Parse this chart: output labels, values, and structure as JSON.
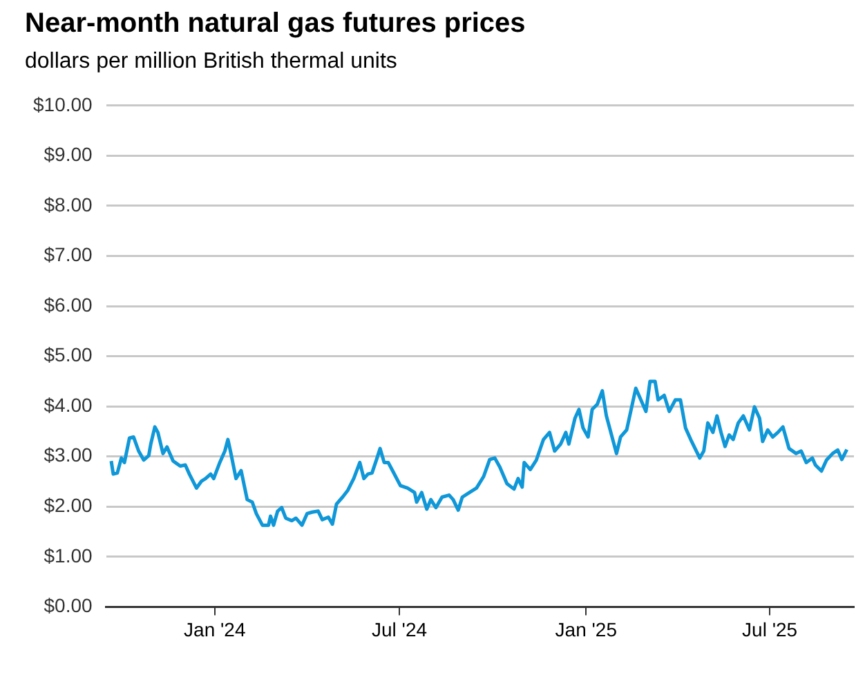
{
  "chart_data": {
    "type": "line",
    "title": "Near-month natural gas futures prices",
    "subtitle": "dollars per million British thermal units",
    "x": [
      "2023-09-21",
      "2023-09-23",
      "2023-09-27",
      "2023-10-01",
      "2023-10-04",
      "2023-10-09",
      "2023-10-13",
      "2023-10-18",
      "2023-10-23",
      "2023-10-28",
      "2023-10-30",
      "2023-11-03",
      "2023-11-06",
      "2023-11-11",
      "2023-11-15",
      "2023-11-21",
      "2023-11-28",
      "2023-12-03",
      "2023-12-07",
      "2023-12-14",
      "2023-12-19",
      "2023-12-23",
      "2023-12-28",
      "2023-12-31",
      "2024-01-06",
      "2024-01-11",
      "2024-01-14",
      "2024-01-17",
      "2024-01-22",
      "2024-01-27",
      "2024-02-02",
      "2024-02-07",
      "2024-02-11",
      "2024-02-17",
      "2024-02-23",
      "2024-02-25",
      "2024-02-28",
      "2024-03-03",
      "2024-03-07",
      "2024-03-11",
      "2024-03-17",
      "2024-03-21",
      "2024-03-27",
      "2024-04-01",
      "2024-04-06",
      "2024-04-12",
      "2024-04-16",
      "2024-04-22",
      "2024-04-26",
      "2024-04-30",
      "2024-05-06",
      "2024-05-11",
      "2024-05-17",
      "2024-05-23",
      "2024-05-27",
      "2024-05-31",
      "2024-06-04",
      "2024-06-09",
      "2024-06-12",
      "2024-06-16",
      "2024-06-20",
      "2024-06-25",
      "2024-07-02",
      "2024-07-09",
      "2024-07-16",
      "2024-07-18",
      "2024-07-23",
      "2024-07-28",
      "2024-08-01",
      "2024-08-06",
      "2024-08-12",
      "2024-08-19",
      "2024-08-23",
      "2024-08-28",
      "2024-09-01",
      "2024-09-08",
      "2024-09-15",
      "2024-09-22",
      "2024-09-28",
      "2024-10-03",
      "2024-10-08",
      "2024-10-15",
      "2024-10-22",
      "2024-10-26",
      "2024-10-30",
      "2024-11-01",
      "2024-11-07",
      "2024-11-13",
      "2024-11-20",
      "2024-11-26",
      "2024-12-01",
      "2024-12-07",
      "2024-12-12",
      "2024-12-15",
      "2024-12-21",
      "2024-12-25",
      "2024-12-29",
      "2025-01-03",
      "2025-01-07",
      "2025-01-12",
      "2025-01-17",
      "2025-01-21",
      "2025-01-31",
      "2025-02-04",
      "2025-02-10",
      "2025-02-19",
      "2025-02-24",
      "2025-03-01",
      "2025-03-05",
      "2025-03-10",
      "2025-03-13",
      "2025-03-19",
      "2025-03-24",
      "2025-03-30",
      "2025-04-04",
      "2025-04-09",
      "2025-04-15",
      "2025-04-23",
      "2025-04-27",
      "2025-05-01",
      "2025-05-06",
      "2025-05-10",
      "2025-05-14",
      "2025-05-18",
      "2025-05-22",
      "2025-05-26",
      "2025-05-31",
      "2025-06-05",
      "2025-06-11",
      "2025-06-16",
      "2025-06-21",
      "2025-06-24",
      "2025-06-29",
      "2025-07-04",
      "2025-07-09",
      "2025-07-14",
      "2025-07-20",
      "2025-07-27",
      "2025-08-01",
      "2025-08-06",
      "2025-08-12",
      "2025-08-15",
      "2025-08-21",
      "2025-08-26",
      "2025-09-01",
      "2025-09-06",
      "2025-09-10",
      "2025-09-15"
    ],
    "series": [
      {
        "color": "#0f97d8",
        "values": [
          2.91,
          2.65,
          2.67,
          2.97,
          2.88,
          3.37,
          3.39,
          3.11,
          2.93,
          3.02,
          3.25,
          3.59,
          3.48,
          3.06,
          3.19,
          2.91,
          2.81,
          2.83,
          2.65,
          2.37,
          2.51,
          2.56,
          2.65,
          2.56,
          2.88,
          3.11,
          3.34,
          3.06,
          2.56,
          2.72,
          2.14,
          2.09,
          1.86,
          1.63,
          1.63,
          1.81,
          1.63,
          1.91,
          1.98,
          1.77,
          1.72,
          1.77,
          1.63,
          1.86,
          1.89,
          1.91,
          1.74,
          1.79,
          1.65,
          2.05,
          2.19,
          2.32,
          2.56,
          2.88,
          2.56,
          2.65,
          2.67,
          2.97,
          3.16,
          2.88,
          2.88,
          2.69,
          2.42,
          2.37,
          2.28,
          2.09,
          2.28,
          1.95,
          2.14,
          1.98,
          2.19,
          2.23,
          2.14,
          1.93,
          2.19,
          2.28,
          2.37,
          2.6,
          2.94,
          2.97,
          2.79,
          2.46,
          2.35,
          2.56,
          2.39,
          2.88,
          2.74,
          2.93,
          3.34,
          3.48,
          3.11,
          3.25,
          3.48,
          3.25,
          3.76,
          3.94,
          3.57,
          3.39,
          3.94,
          4.04,
          4.31,
          3.81,
          3.06,
          3.39,
          3.53,
          4.36,
          4.13,
          3.9,
          4.5,
          4.5,
          4.13,
          4.22,
          3.9,
          4.13,
          4.13,
          3.57,
          3.3,
          2.97,
          3.11,
          3.67,
          3.48,
          3.81,
          3.48,
          3.2,
          3.43,
          3.34,
          3.67,
          3.81,
          3.53,
          3.99,
          3.76,
          3.3,
          3.53,
          3.39,
          3.48,
          3.59,
          3.16,
          3.06,
          3.11,
          2.88,
          2.97,
          2.83,
          2.71,
          2.93,
          3.06,
          3.13,
          2.94,
          3.14
        ]
      }
    ],
    "xlim": [
      "2023-09-16",
      "2025-09-22"
    ],
    "xticks": [
      {
        "value": "2024-01-01",
        "label": "Jan '24"
      },
      {
        "value": "2024-07-01",
        "label": "Jul '24"
      },
      {
        "value": "2025-01-01",
        "label": "Jan '25"
      },
      {
        "value": "2025-07-01",
        "label": "Jul '25"
      }
    ],
    "ylim": [
      0,
      10
    ],
    "yticks": [
      {
        "value": 0,
        "label": "$0.00"
      },
      {
        "value": 1,
        "label": "$1.00"
      },
      {
        "value": 2,
        "label": "$2.00"
      },
      {
        "value": 3,
        "label": "$3.00"
      },
      {
        "value": 4,
        "label": "$4.00"
      },
      {
        "value": 5,
        "label": "$5.00"
      },
      {
        "value": 6,
        "label": "$6.00"
      },
      {
        "value": 7,
        "label": "$7.00"
      },
      {
        "value": 8,
        "label": "$8.00"
      },
      {
        "value": 9,
        "label": "$9.00"
      },
      {
        "value": 10,
        "label": "$10.00"
      }
    ],
    "grid": "y",
    "legend": false,
    "marker": "none",
    "line_style": "solid"
  }
}
